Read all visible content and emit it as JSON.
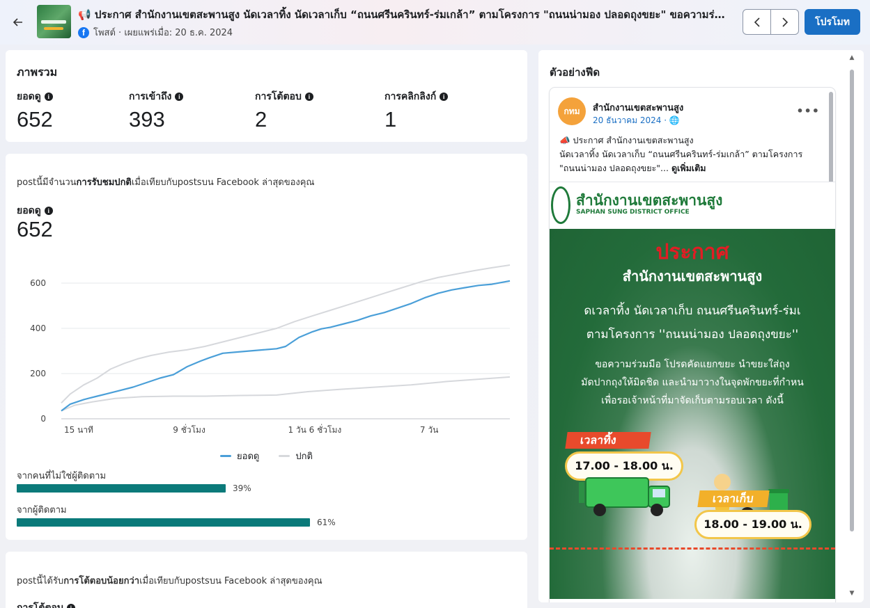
{
  "header": {
    "title": "📢 ประกาศ สำนักงานเขตสะพานสูง นัดเวลาทิ้ง นัดเวลาเก็บ “ถนนศรีนครินทร์-ร่มเกล้า” ตามโครงการ \"ถนนน่ามอง ปลอดถุงขยะ\" ขอความร่วมมือ",
    "meta": "โพสต์ · เผยแพร่เมื่อ: 20 ธ.ค. 2024",
    "promote_label": "โปรโมท"
  },
  "overview": {
    "title": "ภาพรวม",
    "metrics": [
      {
        "label": "ยอดดู",
        "value": "652"
      },
      {
        "label": "การเข้าถึง",
        "value": "393"
      },
      {
        "label": "การโต้ตอบ",
        "value": "2"
      },
      {
        "label": "การคลิกลิงก์",
        "value": "1"
      }
    ]
  },
  "views_card": {
    "sentence_pre": "postนี้มีจำนวน",
    "sentence_bold": "การรับชมปกติ",
    "sentence_post": "เมื่อเทียบกับpostsบน Facebook ล่าสุดของคุณ",
    "metric_label": "ยอดดู",
    "metric_value": "652",
    "legend": [
      {
        "name": "ยอดดู",
        "color": "#4a9fd8"
      },
      {
        "name": "ปกติ",
        "color": "#d6d8dc"
      }
    ],
    "breakdown": [
      {
        "label": "จากคนที่ไม่ใช่ผู้ติดตาม",
        "percent": 39,
        "text": "39%"
      },
      {
        "label": "จากผู้ติดตาม",
        "percent": 61,
        "text": "61%"
      }
    ]
  },
  "chart_data": {
    "type": "line",
    "ylim": [
      0,
      680
    ],
    "yticks": [
      0,
      200,
      400,
      600
    ],
    "xtick_labels": [
      {
        "label": "15 นาที",
        "x": 0.0
      },
      {
        "label": "9 ชั่วโมง",
        "x": 0.285
      },
      {
        "label": "1 วัน 6 ชั่วโมง",
        "x": 0.565
      },
      {
        "label": "7 วัน",
        "x": 0.82
      }
    ],
    "series": [
      {
        "name": "ยอดดู",
        "color": "#4a9fd8",
        "x": [
          0,
          0.02,
          0.05,
          0.08,
          0.1,
          0.13,
          0.16,
          0.19,
          0.22,
          0.25,
          0.28,
          0.31,
          0.33,
          0.36,
          0.39,
          0.42,
          0.45,
          0.48,
          0.5,
          0.53,
          0.56,
          0.58,
          0.6,
          0.63,
          0.66,
          0.69,
          0.72,
          0.75,
          0.78,
          0.81,
          0.84,
          0.87,
          0.9,
          0.93,
          0.96,
          1.0
        ],
        "y": [
          35,
          65,
          85,
          100,
          110,
          125,
          140,
          160,
          180,
          195,
          230,
          255,
          270,
          290,
          295,
          300,
          305,
          310,
          320,
          360,
          385,
          398,
          405,
          420,
          435,
          455,
          470,
          490,
          510,
          535,
          555,
          570,
          580,
          590,
          595,
          610
        ]
      },
      {
        "name": "ปกติ",
        "color": "#d6d8dc",
        "x": [
          0,
          0.02,
          0.05,
          0.08,
          0.11,
          0.14,
          0.17,
          0.2,
          0.24,
          0.28,
          0.32,
          0.36,
          0.4,
          0.44,
          0.48,
          0.52,
          0.56,
          0.6,
          0.64,
          0.68,
          0.72,
          0.76,
          0.8,
          0.84,
          0.88,
          0.92,
          0.96,
          1.0
        ],
        "y": [
          70,
          110,
          150,
          180,
          220,
          245,
          265,
          280,
          295,
          305,
          320,
          340,
          360,
          380,
          400,
          430,
          455,
          480,
          505,
          530,
          555,
          580,
          605,
          625,
          640,
          655,
          668,
          680
        ]
      },
      {
        "name": "ปกติ (ต่ำ)",
        "color": "#d6d8dc",
        "x": [
          0,
          0.03,
          0.07,
          0.12,
          0.18,
          0.25,
          0.32,
          0.4,
          0.48,
          0.55,
          0.62,
          0.7,
          0.78,
          0.86,
          0.93,
          1.0
        ],
        "y": [
          35,
          60,
          75,
          90,
          98,
          100,
          100,
          103,
          105,
          120,
          130,
          140,
          150,
          165,
          175,
          185
        ]
      }
    ]
  },
  "interactions_card": {
    "sentence_pre": "postนี้ได้รับ",
    "sentence_bold": "การโต้ตอบน้อยกว่า",
    "sentence_post": "เมื่อเทียบกับpostsบน Facebook ล่าสุดของคุณ",
    "metric_label": "การโต้ตอบ"
  },
  "feed_preview": {
    "title": "ตัวอย่างฟีด",
    "page_name": "สำนักงานเขตสะพานสูง",
    "avatar_text": "กทม",
    "date": "20 ธันวาคม 2024 · 🌐",
    "text_line1": "📣 ประกาศ สำนักงานเขตสะพานสูง",
    "text_line2": "นัดเวลาทิ้ง นัดเวลาเก็บ “ถนนศรีนครินทร์-ร่มเกล้า” ตามโครงการ",
    "text_line3": "\"ถนนน่ามอง ปลอดถุงขยะ\"...",
    "see_more": "ดูเพิ่มเติม",
    "image": {
      "org_th": "สำนักงานเขตสะพานสูง",
      "org_en": "SAPHAN SUNG DISTRICT OFFICE",
      "headline": "ประกาศ",
      "sub": "สำนักงานเขตสะพานสูง",
      "line1": "ดเวลาทิ้ง นัดเวลาเก็บ ถนนศรีนครินทร์-ร่มเ",
      "line2": "ตามโครงการ ''ถนนน่ามอง ปลอดถุงขยะ''",
      "line3": "ขอความร่วมมือ โปรดคัดแยกขยะ นำขยะใส่ถุง",
      "line4": "มัดปากถุงให้มิดชิด และนำมาวางในจุดพักขยะที่กำหน",
      "line5": "เพื่อรอเจ้าหน้าที่มาจัดเก็บตามรอบเวลา ดังนี้",
      "drop_label": "เวลาทิ้ง",
      "drop_time": "17.00 - 18.00 น.",
      "collect_label": "เวลาเก็บ",
      "collect_time": "18.00 - 19.00 น."
    }
  }
}
